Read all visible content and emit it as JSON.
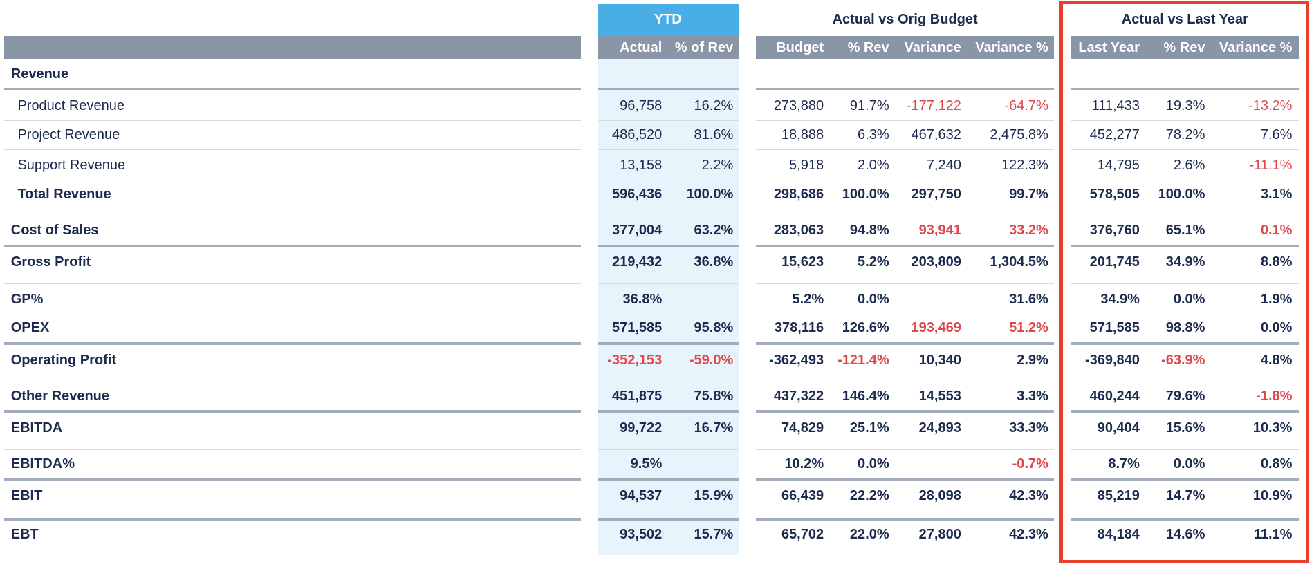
{
  "table": {
    "groups": [
      "YTD",
      "Actual vs Orig Budget",
      "Actual vs Last Year"
    ],
    "columns": [
      "Actual",
      "% of Rev",
      "Budget",
      "% Rev",
      "Variance",
      "Variance %",
      "Last Year",
      "% Rev",
      "Variance %"
    ],
    "rows": [
      {
        "label": "Revenue",
        "style": "section",
        "cells": [],
        "red_cells": []
      },
      {
        "label": "Product Revenue",
        "style": "indent",
        "cells": [
          "96,758",
          "16.2%",
          "273,880",
          "91.7%",
          "-177,122",
          "-64.7%",
          "111,433",
          "19.3%",
          "-13.2%"
        ],
        "red_cells": [
          4,
          5,
          8
        ]
      },
      {
        "label": "Project Revenue",
        "style": "indent",
        "cells": [
          "486,520",
          "81.6%",
          "18,888",
          "6.3%",
          "467,632",
          "2,475.8%",
          "452,277",
          "78.2%",
          "7.6%"
        ],
        "red_cells": []
      },
      {
        "label": "Support Revenue",
        "style": "indent",
        "cells": [
          "13,158",
          "2.2%",
          "5,918",
          "2.0%",
          "7,240",
          "122.3%",
          "14,795",
          "2.6%",
          "-11.1%"
        ],
        "red_cells": [
          8
        ]
      },
      {
        "label": "Total Revenue",
        "style": "indent-bold",
        "cells": [
          "596,436",
          "100.0%",
          "298,686",
          "100.0%",
          "297,750",
          "99.7%",
          "578,505",
          "100.0%",
          "3.1%"
        ],
        "red_cells": []
      },
      {
        "label": "Cost of Sales",
        "style": "bold",
        "cells": [
          "377,004",
          "63.2%",
          "283,063",
          "94.8%",
          "93,941",
          "33.2%",
          "376,760",
          "65.1%",
          "0.1%"
        ],
        "red_cells": [
          4,
          5,
          8
        ]
      },
      {
        "label": "Gross Profit",
        "style": "bold",
        "cells": [
          "219,432",
          "36.8%",
          "15,623",
          "5.2%",
          "203,809",
          "1,304.5%",
          "201,745",
          "34.9%",
          "8.8%"
        ],
        "red_cells": []
      },
      {
        "label": "GP%",
        "style": "bold",
        "cells": [
          "36.8%",
          null,
          "5.2%",
          "0.0%",
          null,
          "31.6%",
          "34.9%",
          "0.0%",
          "1.9%"
        ],
        "red_cells": []
      },
      {
        "label": "OPEX",
        "style": "bold",
        "cells": [
          "571,585",
          "95.8%",
          "378,116",
          "126.6%",
          "193,469",
          "51.2%",
          "571,585",
          "98.8%",
          "0.0%"
        ],
        "red_cells": [
          4,
          5
        ]
      },
      {
        "label": "Operating Profit",
        "style": "bold",
        "cells": [
          "-352,153",
          "-59.0%",
          "-362,493",
          "-121.4%",
          "10,340",
          "2.9%",
          "-369,840",
          "-63.9%",
          "4.8%"
        ],
        "red_cells": [
          0,
          1,
          3,
          7
        ]
      },
      {
        "label": "Other Revenue",
        "style": "bold",
        "cells": [
          "451,875",
          "75.8%",
          "437,322",
          "146.4%",
          "14,553",
          "3.3%",
          "460,244",
          "79.6%",
          "-1.8%"
        ],
        "red_cells": [
          8
        ]
      },
      {
        "label": "EBITDA",
        "style": "bold",
        "cells": [
          "99,722",
          "16.7%",
          "74,829",
          "25.1%",
          "24,893",
          "33.3%",
          "90,404",
          "15.6%",
          "10.3%"
        ],
        "red_cells": []
      },
      {
        "label": "EBITDA%",
        "style": "bold",
        "cells": [
          "9.5%",
          null,
          "10.2%",
          "0.0%",
          null,
          "-0.7%",
          "8.7%",
          "0.0%",
          "0.8%"
        ],
        "red_cells": [
          5
        ]
      },
      {
        "label": "EBIT",
        "style": "bold",
        "cells": [
          "94,537",
          "15.9%",
          "66,439",
          "22.2%",
          "28,098",
          "42.3%",
          "85,219",
          "14.7%",
          "10.9%"
        ],
        "red_cells": []
      },
      {
        "label": "EBT",
        "style": "bold",
        "cells": [
          "93,502",
          "15.7%",
          "65,702",
          "22.0%",
          "27,800",
          "42.3%",
          "84,184",
          "14.6%",
          "11.1%"
        ],
        "red_cells": []
      }
    ]
  }
}
